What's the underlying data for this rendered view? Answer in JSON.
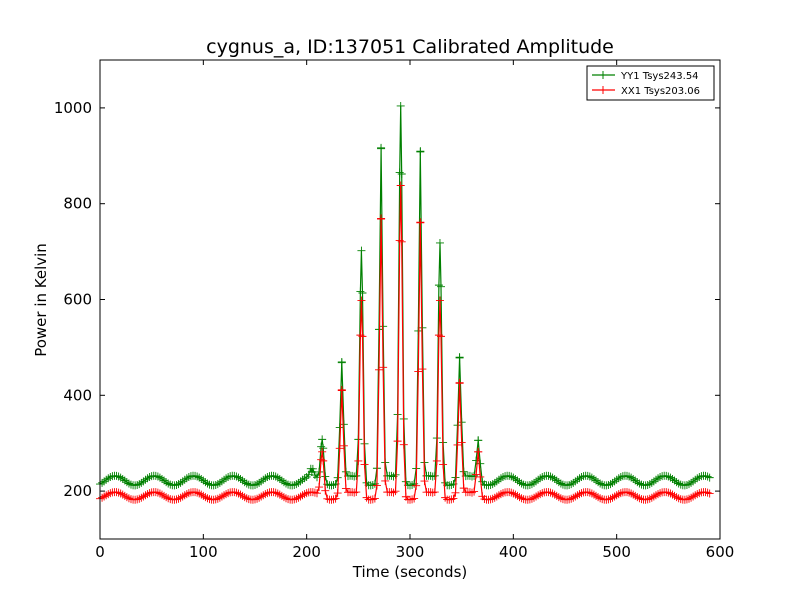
{
  "chart_data": {
    "type": "line",
    "title": "cygnus_a, ID:137051 Calibrated Amplitude",
    "xlabel": "Time (seconds)",
    "ylabel": "Power in Kelvin",
    "xlim": [
      0,
      600
    ],
    "ylim": [
      100,
      1100
    ],
    "x_ticks": [
      0,
      100,
      200,
      300,
      400,
      500,
      600
    ],
    "y_ticks": [
      200,
      400,
      600,
      800,
      1000
    ],
    "grid": false,
    "legend_position": "top-right",
    "marker": "plus",
    "x_range": [
      0,
      590
    ],
    "sample_step": 2,
    "series": [
      {
        "name": "YY1 Tsys243.54",
        "color": "#008000",
        "baseline": 222,
        "ripple_amplitude": 10,
        "ripple_period": 38,
        "fringes": [
          {
            "x": 205,
            "peak": 240
          },
          {
            "x": 215,
            "peak": 308
          },
          {
            "x": 234,
            "peak": 468
          },
          {
            "x": 253,
            "peak": 702
          },
          {
            "x": 272,
            "peak": 915
          },
          {
            "x": 291,
            "peak": 1004
          },
          {
            "x": 310,
            "peak": 908
          },
          {
            "x": 329,
            "peak": 718
          },
          {
            "x": 348,
            "peak": 478
          },
          {
            "x": 366,
            "peak": 306
          }
        ]
      },
      {
        "name": "XX1 Tsys203.06",
        "color": "#ff0000",
        "baseline": 190,
        "ripple_amplitude": 8,
        "ripple_period": 38,
        "fringes": [
          {
            "x": 215,
            "peak": 282
          },
          {
            "x": 234,
            "peak": 410
          },
          {
            "x": 253,
            "peak": 598
          },
          {
            "x": 272,
            "peak": 768
          },
          {
            "x": 291,
            "peak": 838
          },
          {
            "x": 310,
            "peak": 760
          },
          {
            "x": 329,
            "peak": 598
          },
          {
            "x": 348,
            "peak": 425
          },
          {
            "x": 366,
            "peak": 282
          }
        ]
      }
    ]
  }
}
